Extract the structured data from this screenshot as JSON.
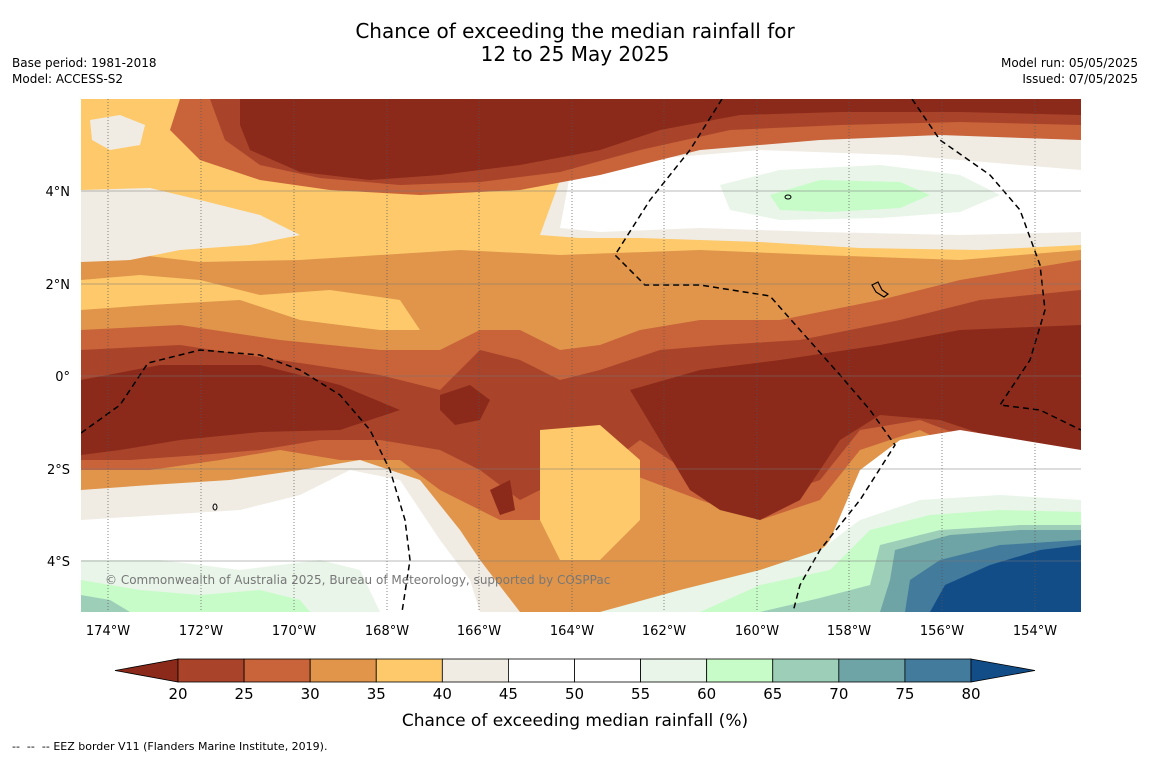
{
  "title": {
    "line1": "Chance of exceeding the median rainfall for",
    "line2": "12 to 25 May 2025"
  },
  "meta": {
    "base_period": "Base period: 1981-2018",
    "model": "Model: ACCESS-S2",
    "model_run": "Model run: 05/05/2025",
    "issued": "Issued: 07/05/2025"
  },
  "copyright": "© Commonwealth of Australia 2025, Bureau of Meteorology, supported by COSPPac",
  "map": {
    "lon_ticks": [
      "174°W",
      "172°W",
      "170°W",
      "168°W",
      "166°W",
      "164°W",
      "162°W",
      "160°W",
      "158°W",
      "156°W",
      "154°W"
    ],
    "lat_ticks": [
      "4°N",
      "2°N",
      "0°",
      "2°S",
      "4°S"
    ],
    "lon_range": [
      -174.6,
      -153.0
    ],
    "lat_range": [
      -5.0,
      6.0
    ]
  },
  "colorbar": {
    "label": "Chance of exceeding median rainfall (%)",
    "ticks": [
      "20",
      "25",
      "30",
      "35",
      "40",
      "45",
      "50",
      "55",
      "60",
      "65",
      "70",
      "75",
      "80"
    ],
    "colors": [
      "#8b2a1a",
      "#a9432a",
      "#c8633a",
      "#e0954a",
      "#fdc96a",
      "#f0ece4",
      "#ffffff",
      "#ffffff",
      "#e8f5e8",
      "#c7fcc8",
      "#9dcfb8",
      "#6ea4a6",
      "#427b9c",
      "#134d88"
    ]
  },
  "legend": {
    "eez": "EEZ border V11 (Flanders Marine Institute, 2019)."
  }
}
